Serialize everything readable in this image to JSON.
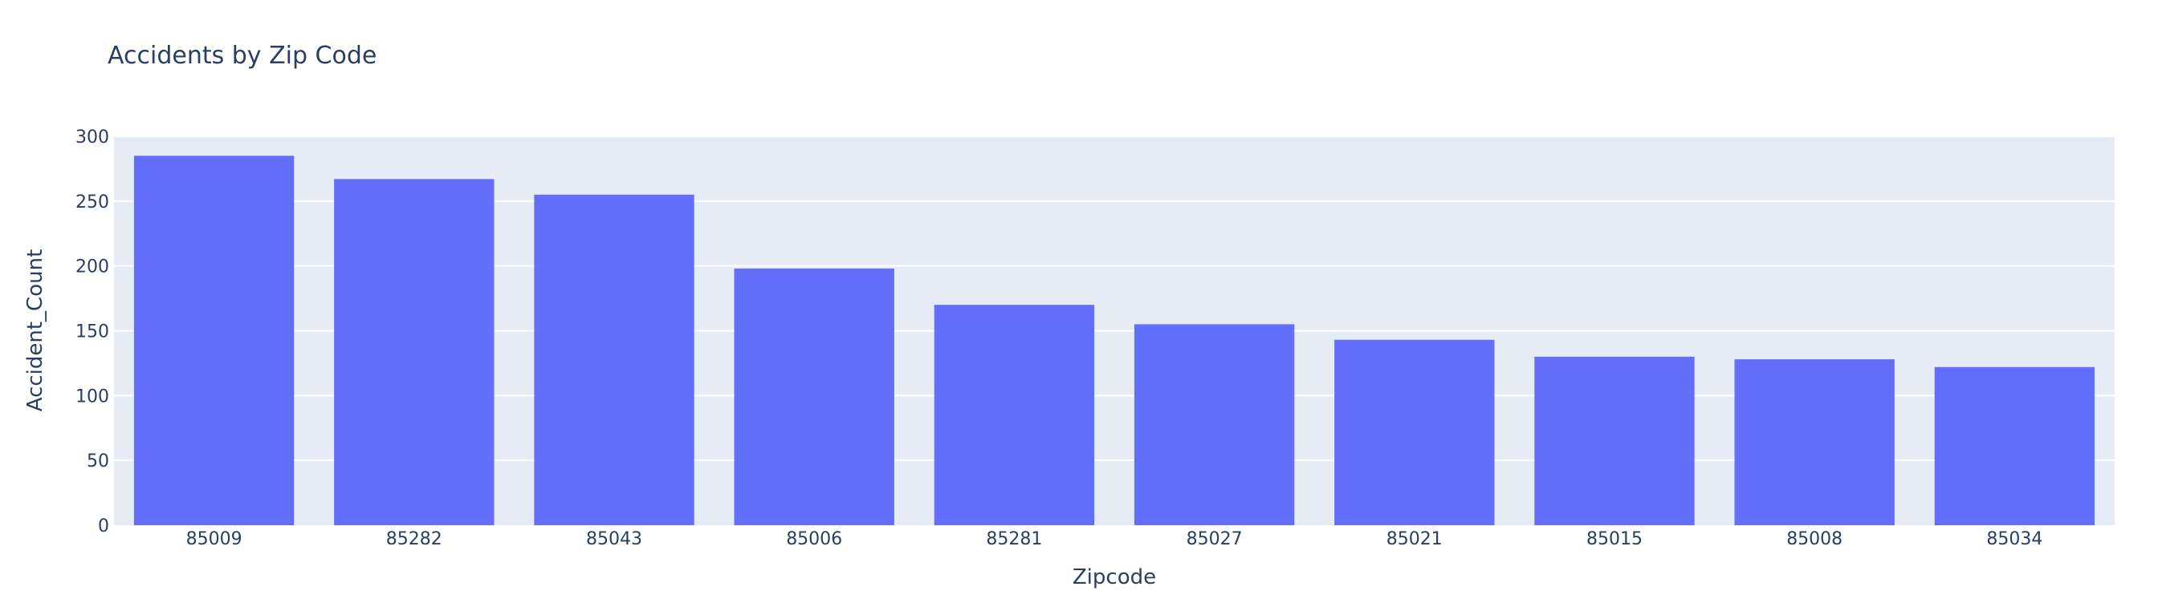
{
  "chart_data": {
    "type": "bar",
    "title": "Accidents by Zip Code",
    "xlabel": "Zipcode",
    "ylabel": "Accident_Count",
    "categories": [
      "85009",
      "85282",
      "85043",
      "85006",
      "85281",
      "85027",
      "85021",
      "85015",
      "85008",
      "85034"
    ],
    "values": [
      285,
      267,
      255,
      198,
      170,
      155,
      143,
      130,
      128,
      122
    ],
    "ylim": [
      0,
      300
    ],
    "yticks": [
      0,
      50,
      100,
      150,
      200,
      250,
      300
    ],
    "grid": true,
    "colors": {
      "bar": "#636efa",
      "plot_background": "#e5ecf6",
      "grid": "#ffffff",
      "text": "#2a3f5f"
    }
  }
}
